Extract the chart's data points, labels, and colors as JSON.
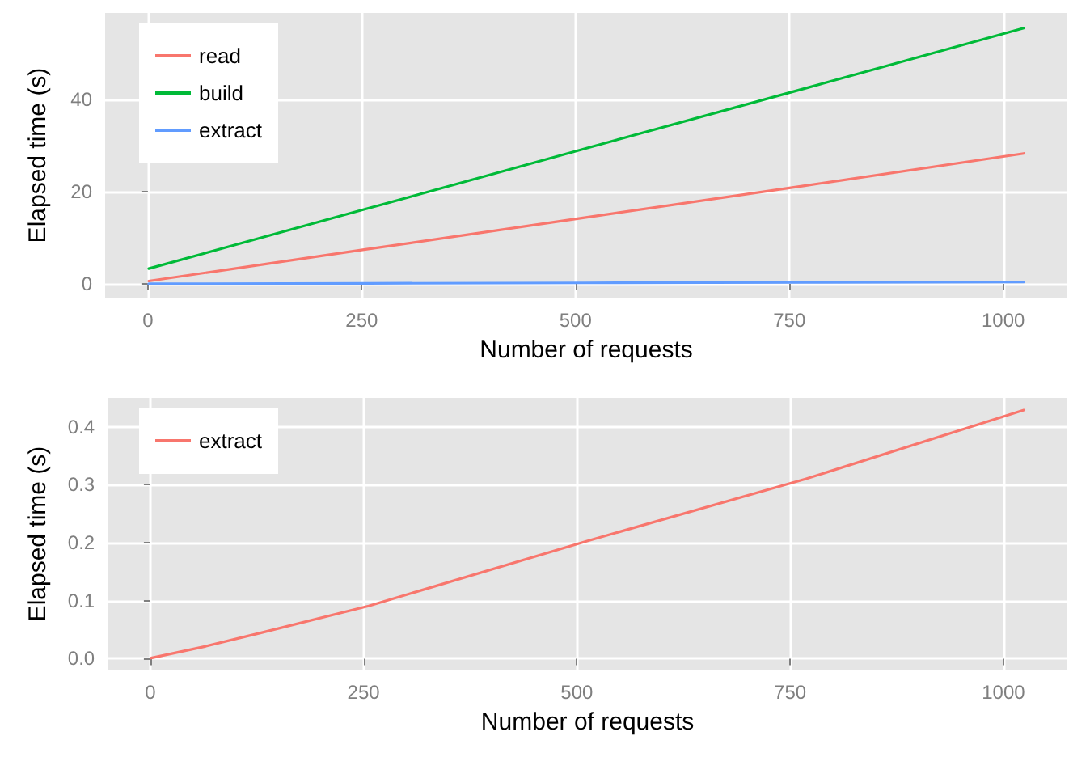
{
  "chart_data": [
    {
      "type": "line",
      "xlabel": "Number of requests",
      "ylabel": "Elapsed time (s)",
      "x": [
        1,
        256,
        512,
        768,
        1024
      ],
      "series": [
        {
          "name": "read",
          "color": "#f8766d",
          "values": [
            0.6,
            7.5,
            14.4,
            21.3,
            28.3
          ]
        },
        {
          "name": "build",
          "color": "#00ba38",
          "values": [
            3.3,
            16.3,
            29.4,
            42.4,
            55.5
          ]
        },
        {
          "name": "extract",
          "color": "#619cff",
          "values": [
            0.0,
            0.1,
            0.2,
            0.3,
            0.4
          ]
        }
      ],
      "xlim": [
        -50,
        1075
      ],
      "xticks": [
        0,
        250,
        500,
        750,
        1000
      ],
      "ylim": [
        -3,
        58.8
      ],
      "yticks": [
        0,
        20,
        40
      ],
      "grid": true,
      "legend": "top left",
      "marker": "none",
      "line_style": "solid"
    },
    {
      "type": "line",
      "xlabel": "Number of requests",
      "ylabel": "Elapsed time (s)",
      "x": [
        1,
        64,
        128,
        256,
        512,
        768,
        1024
      ],
      "series": [
        {
          "name": "extract",
          "color": "#f8766d",
          "values": [
            0.001,
            0.021,
            0.044,
            0.091,
            0.203,
            0.31,
            0.429
          ]
        }
      ],
      "xlim": [
        -50,
        1075
      ],
      "xticks": [
        0,
        250,
        500,
        750,
        1000
      ],
      "ylim": [
        -0.019,
        0.45
      ],
      "yticks": [
        {
          "value": 0,
          "label": "0.0"
        },
        0.1,
        0.2,
        0.3,
        0.4
      ],
      "grid": true,
      "legend": "top left",
      "marker": "none",
      "line_style": "solid"
    }
  ]
}
